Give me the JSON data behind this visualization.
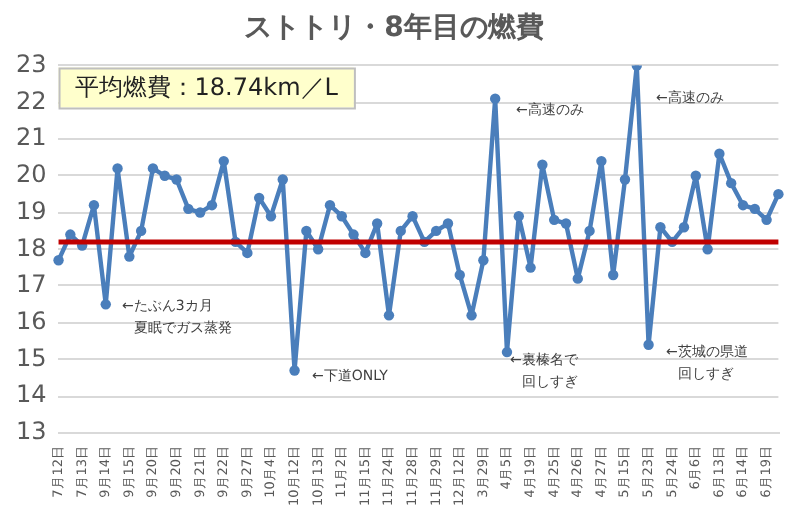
{
  "chart_data": {
    "type": "line",
    "title": "ストトリ・8年目の燃費",
    "categories": [
      "7月12日",
      null,
      "7月13日",
      null,
      "9月14日",
      null,
      "9月15日",
      null,
      "9月20日",
      null,
      "9月20日",
      null,
      "9月21日",
      null,
      "9月22日",
      null,
      "9月27日",
      null,
      "10月4日",
      null,
      "10月12日",
      null,
      "10月13日",
      null,
      "11月2日",
      null,
      "11月15日",
      null,
      "11月24日",
      null,
      "11月28日",
      null,
      "11月29日",
      null,
      "12月12日",
      null,
      "3月29日",
      null,
      "4月5日",
      null,
      "4月19日",
      null,
      "4月25日",
      null,
      "4月26日",
      null,
      "4月27日",
      null,
      "5月15日",
      null,
      "5月23日",
      null,
      "5月24日",
      null,
      "6月6日",
      null,
      "6月13日",
      null,
      "6月14日",
      null,
      "6月19日",
      null
    ],
    "series": [
      {
        "color": "#4a7ebb",
        "values": [
          17.7,
          18.4,
          18.1,
          19.2,
          16.5,
          20.2,
          17.8,
          18.5,
          20.2,
          20.0,
          19.9,
          19.1,
          19.0,
          19.2,
          20.4,
          18.2,
          17.9,
          19.4,
          18.9,
          19.9,
          14.7,
          18.5,
          18.0,
          19.2,
          18.9,
          18.4,
          17.9,
          18.7,
          16.2,
          18.5,
          18.9,
          18.2,
          18.5,
          18.7,
          17.3,
          16.2,
          17.7,
          22.1,
          15.2,
          18.9,
          17.5,
          20.3,
          18.8,
          18.7,
          17.2,
          18.5,
          20.4,
          17.3,
          19.9,
          23.0,
          15.4,
          18.6,
          18.2,
          18.6,
          20.0,
          18.0,
          20.6,
          19.8,
          19.2,
          19.1,
          18.8,
          19.5
        ]
      }
    ],
    "ylim": [
      13,
      23
    ],
    "yticks": [
      13,
      14,
      15,
      16,
      17,
      18,
      19,
      20,
      21,
      22,
      23
    ],
    "grid": "y",
    "marker": "circle",
    "line_style": "solid",
    "ref_lines": [
      {
        "axis": "y",
        "value": 18.2,
        "color": "#c00000"
      }
    ],
    "annotations": [
      "平均燃費：18.74km／L",
      "←たぶん3カ月",
      "夏眠でガス蒸発",
      "←下道ONLY",
      "←高速のみ",
      "←高速のみ",
      "←裏榛名で",
      "回しすぎ",
      "←茨城の県道",
      "回しすぎ"
    ]
  }
}
